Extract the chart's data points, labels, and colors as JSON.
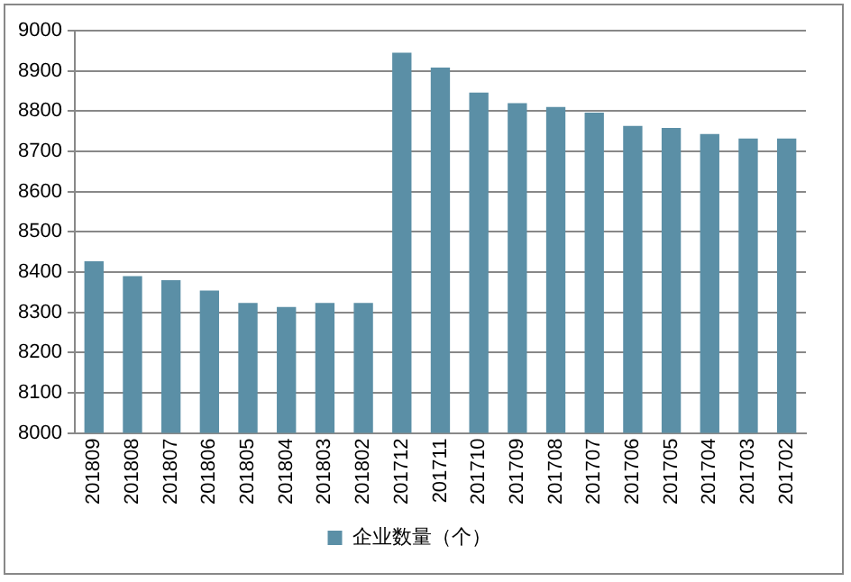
{
  "chart_data": {
    "type": "bar",
    "categories": [
      "201809",
      "201808",
      "201807",
      "201806",
      "201805",
      "201804",
      "201803",
      "201802",
      "201712",
      "201711",
      "201710",
      "201709",
      "201708",
      "201707",
      "201706",
      "201705",
      "201704",
      "201703",
      "201702"
    ],
    "series": [
      {
        "name": "企业数量（个）",
        "color": "#5b8fa6",
        "values": [
          8427,
          8390,
          8380,
          8354,
          8323,
          8313,
          8323,
          8323,
          8945,
          8908,
          8846,
          8820,
          8810,
          8796,
          8763,
          8758,
          8743,
          8732,
          8732
        ]
      }
    ],
    "ylim": [
      8000,
      9000
    ],
    "yticks": [
      8000,
      8100,
      8200,
      8300,
      8400,
      8500,
      8600,
      8700,
      8800,
      8900,
      9000
    ],
    "grid": "y",
    "legend": "bottom"
  }
}
